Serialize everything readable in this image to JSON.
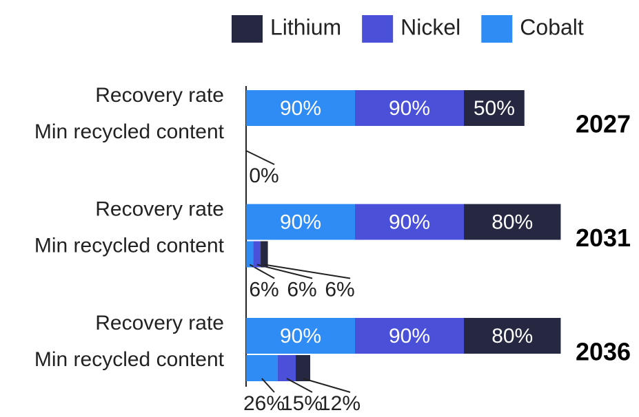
{
  "chart_data": {
    "type": "stacked-barh",
    "categories": [
      "Recovery rate",
      "Min recycled content",
      "Recovery rate",
      "Min recycled content",
      "Recovery rate",
      "Min recycled content"
    ],
    "groups": [
      "2027",
      "2031",
      "2036"
    ],
    "series": [
      {
        "name": "Cobalt",
        "color": "#2f8cf5",
        "values": [
          90,
          0,
          90,
          6,
          90,
          26
        ],
        "value_labels": [
          "90%",
          "0%",
          "90%",
          "6%",
          "90%",
          "26%"
        ]
      },
      {
        "name": "Nickel",
        "color": "#4a50d8",
        "values": [
          90,
          null,
          90,
          6,
          90,
          15
        ],
        "value_labels": [
          "90%",
          null,
          "90%",
          "6%",
          "90%",
          "15%"
        ]
      },
      {
        "name": "Lithium",
        "color": "#262842",
        "values": [
          50,
          null,
          80,
          6,
          80,
          12
        ],
        "value_labels": [
          "50%",
          null,
          "80%",
          "6%",
          "80%",
          "12%"
        ]
      }
    ],
    "legend_order": [
      "Lithium",
      "Nickel",
      "Cobalt"
    ],
    "xlim": [
      0,
      270
    ]
  }
}
